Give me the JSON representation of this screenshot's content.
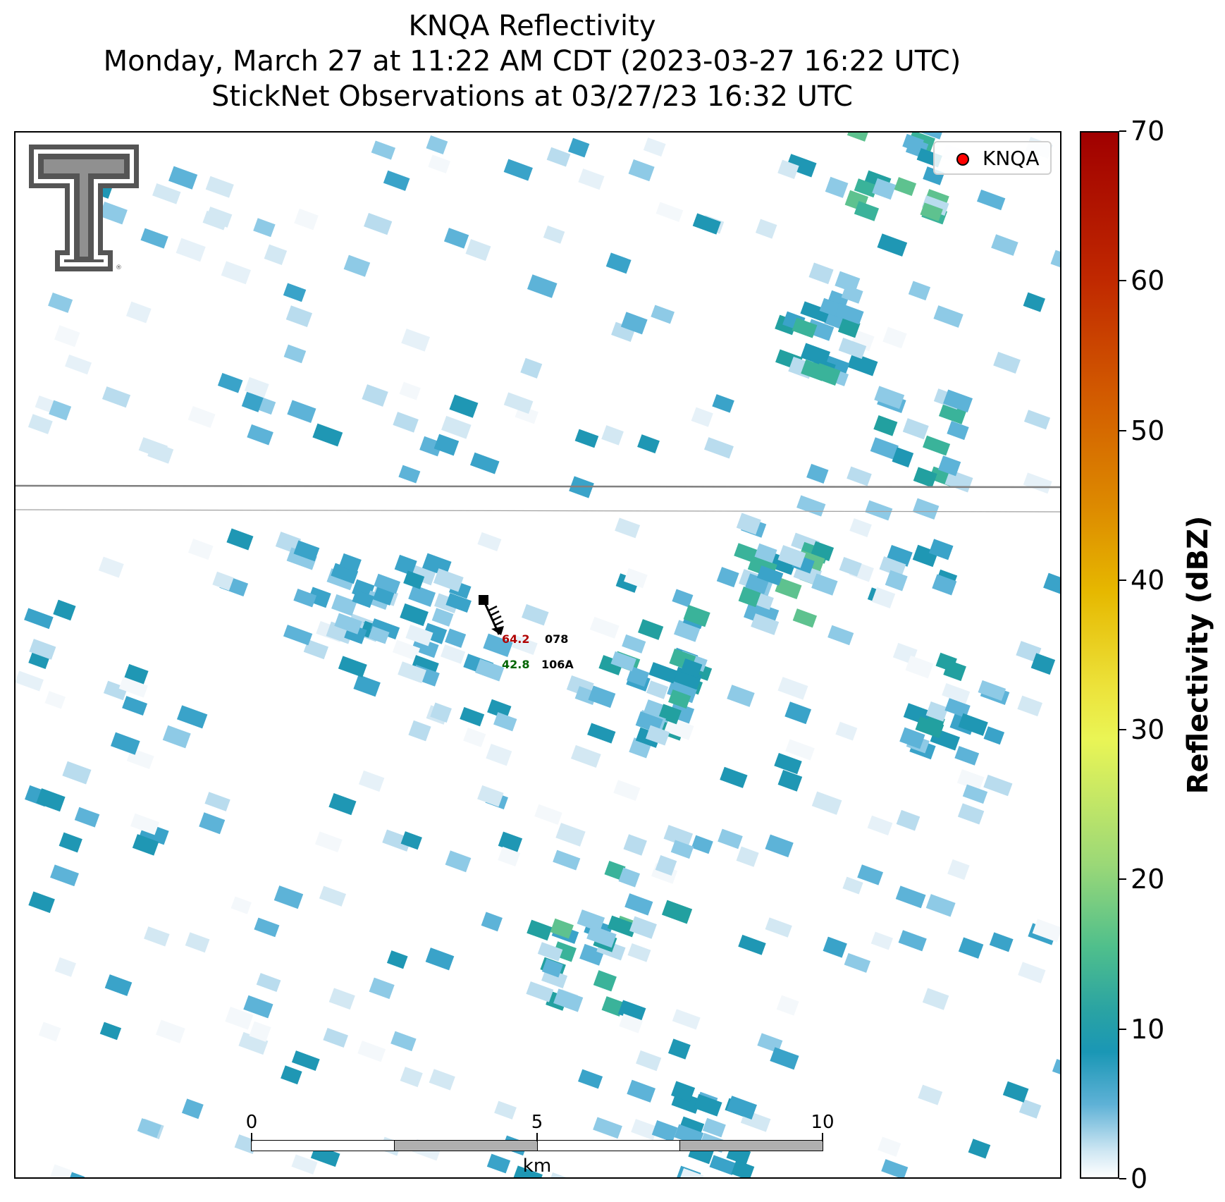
{
  "title": {
    "line1": "KNQA Reflectivity",
    "line2": "Monday, March 27 at 11:22 AM CDT (2023-03-27 16:22 UTC)",
    "line3": "StickNet Observations at 03/27/23 16:32 UTC"
  },
  "legend": {
    "label": "KNQA",
    "marker_color": "#ff0000"
  },
  "colorbar": {
    "label": "Reflectivity (dBZ)",
    "range": [
      0,
      70
    ],
    "ticks": [
      "0",
      "10",
      "20",
      "30",
      "40",
      "50",
      "60",
      "70"
    ]
  },
  "scale_bar": {
    "ticks": [
      "0",
      "5",
      "10"
    ],
    "unit": "km"
  },
  "station": {
    "temperature": "64.2",
    "temperature_color": "#b00000",
    "dewpoint": "42.8",
    "dewpoint_color": "#006400",
    "pressure": "078",
    "station_id": "106A"
  },
  "logo": {
    "name": "texas-tech-double-t-logo"
  }
}
